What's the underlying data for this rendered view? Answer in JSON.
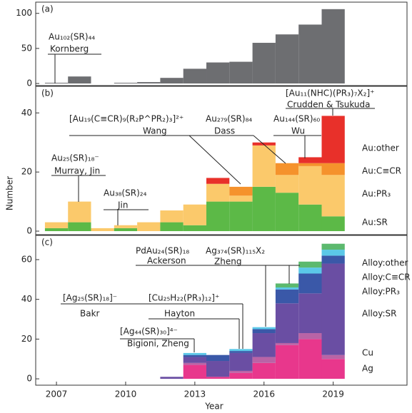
{
  "chart_data": [
    {
      "type": "bar",
      "panel": "(a)",
      "x": [
        2007,
        2008,
        2009,
        2010,
        2011,
        2012,
        2013,
        2014,
        2015,
        2016,
        2017,
        2018,
        2019
      ],
      "values": [
        1,
        10,
        0,
        1,
        2,
        8,
        21,
        30,
        31,
        58,
        70,
        84,
        106
      ],
      "color": "#6d6e71",
      "xlim": [
        2006.1,
        2022.2
      ],
      "ylim": [
        -3,
        116
      ],
      "yticks": [
        0,
        50,
        100
      ],
      "annotations": [
        {
          "text": "Au₁₀₂(SR)₄₄",
          "note": "Kornberg",
          "color": "#5cb947"
        }
      ]
    },
    {
      "type": "stacked_bar",
      "panel": "(b)",
      "ylabel": "Number",
      "x": [
        2007,
        2008,
        2009,
        2010,
        2011,
        2012,
        2013,
        2014,
        2015,
        2016,
        2017,
        2018,
        2019
      ],
      "series": [
        {
          "name": "Au:SR",
          "color": "#5cb947",
          "values": [
            1,
            3,
            0,
            1,
            0,
            3,
            2,
            10,
            10,
            15,
            13,
            9,
            5
          ]
        },
        {
          "name": "Au:PR₃",
          "color": "#fbc96b",
          "values": [
            2,
            7,
            1,
            1,
            3,
            4,
            7,
            6,
            2,
            14,
            6,
            13,
            14
          ]
        },
        {
          "name": "Au:C≡CR",
          "color": "#f5922c",
          "values": [
            0,
            0,
            0,
            0,
            0,
            0,
            0,
            0,
            3,
            0,
            4,
            1,
            4
          ]
        },
        {
          "name": "Au:other",
          "color": "#e8302a",
          "values": [
            0,
            0,
            0,
            0,
            0,
            0,
            0,
            2,
            0,
            1,
            0,
            2,
            16
          ]
        }
      ],
      "xlim": [
        2006.1,
        2022.2
      ],
      "ylim": [
        -1.2,
        49
      ],
      "yticks": [
        0,
        20,
        40
      ],
      "annotations": [
        {
          "text": "Au₂₅(SR)₁₈⁻",
          "note": "Murray, Jin",
          "color": "#5cb947"
        },
        {
          "text": "Au₃₈(SR)₂₄",
          "note": "Jin",
          "color": "#5cb947"
        },
        {
          "text": "[Au₁₉(C≡CR)₉(R₂P^PR₂)₃]²⁺",
          "note": "Wang",
          "color": "#f5922c"
        },
        {
          "text": "Au₂₇₉(SR)₈₄",
          "note": "Dass",
          "color": "#5cb947"
        },
        {
          "text": "Au₁₄₄(SR)₆₀",
          "note": "Wu",
          "color": "#5cb947"
        },
        {
          "text": "[Au₁₁(NHC)(PR₃)₇X₂]⁺",
          "note": "Crudden & Tsukuda",
          "color": "#f0b85a"
        }
      ]
    },
    {
      "type": "stacked_bar",
      "panel": "(c)",
      "xlabel": "Year",
      "x": [
        2007,
        2008,
        2009,
        2010,
        2011,
        2012,
        2013,
        2014,
        2015,
        2016,
        2017,
        2018,
        2019
      ],
      "series": [
        {
          "name": "Ag",
          "color": "#e8378c",
          "values": [
            0,
            0,
            0,
            0,
            0,
            0,
            7,
            1,
            3,
            8,
            17,
            20,
            10
          ]
        },
        {
          "name": "Cu",
          "color": "#b964a6",
          "values": [
            0,
            0,
            0,
            0,
            0,
            0,
            1,
            0,
            1,
            3,
            1,
            3,
            2
          ]
        },
        {
          "name": "Alloy:SR",
          "color": "#6a4ea3",
          "values": [
            0,
            0,
            0,
            0,
            0,
            1,
            3,
            8,
            9,
            12,
            20,
            20,
            46
          ]
        },
        {
          "name": "Alloy:PR₃",
          "color": "#3a58a8",
          "values": [
            0,
            0,
            0,
            0,
            0,
            0,
            1,
            3,
            1,
            2,
            7,
            10,
            4
          ]
        },
        {
          "name": "Alloy:C≡CR",
          "color": "#5bc8e8",
          "values": [
            0,
            0,
            0,
            0,
            0,
            0,
            1,
            0,
            1,
            1,
            1,
            3,
            3
          ]
        },
        {
          "name": "Alloy:other",
          "color": "#5cb96e",
          "values": [
            0,
            0,
            0,
            0,
            0,
            0,
            0,
            0,
            0,
            0,
            2,
            3,
            3
          ]
        }
      ],
      "xlim": [
        2006.1,
        2022.2
      ],
      "ylim": [
        -3.2,
        72.2
      ],
      "yticks": [
        0,
        20,
        40,
        60
      ],
      "xticks": [
        2007,
        2010,
        2013,
        2016,
        2019
      ],
      "annotations": [
        {
          "text": "PdAu₂₄(SR)₁₈",
          "note": "Ackerson",
          "color": "#6a4ea3"
        },
        {
          "text": "Ag₃₇₄(SR)₁₁₅X₂",
          "note": "Zheng",
          "color": "#e8378c"
        },
        {
          "text": "[Ag₂₅(SR)₁₈]⁻",
          "note": "Bakr",
          "color": "#e8378c"
        },
        {
          "text": "[Cu₂₅H₂₂(PR₃)₁₂]⁺",
          "note": "Hayton",
          "color": "#b964a6"
        },
        {
          "text": "[Ag₄₄(SR)₃₀]⁴⁻",
          "note": "Bigioni, Zheng",
          "color": "#e8378c"
        }
      ]
    }
  ]
}
